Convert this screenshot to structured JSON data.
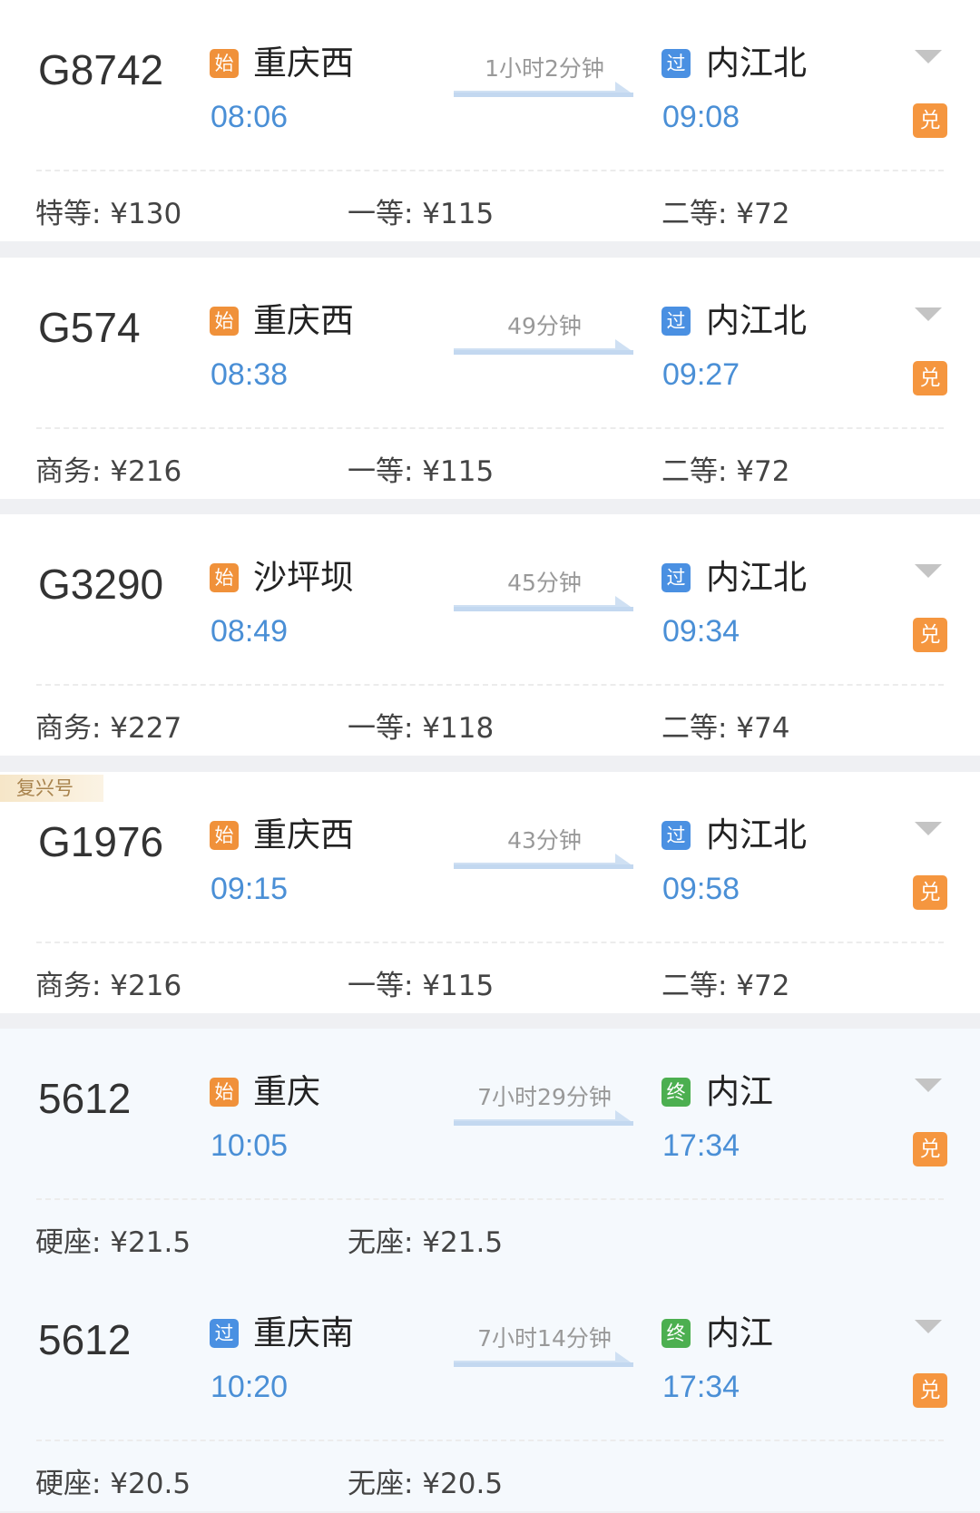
{
  "colors": {
    "start": "#f0913a",
    "pass": "#4a90e2",
    "end": "#4caf50",
    "time": "#4a8fd6",
    "exchange": "#f5963f"
  },
  "trains": [
    {
      "no": "G8742",
      "from_type": "始",
      "from": "重庆西",
      "dep": "08:06",
      "duration": "1小时2分钟",
      "to_type": "过",
      "to": "内江北",
      "arr": "09:08",
      "exchange": "兑",
      "prices": [
        "特等: ¥130",
        "一等: ¥115",
        "二等: ¥72"
      ]
    },
    {
      "no": "G574",
      "from_type": "始",
      "from": "重庆西",
      "dep": "08:38",
      "duration": "49分钟",
      "to_type": "过",
      "to": "内江北",
      "arr": "09:27",
      "exchange": "兑",
      "prices": [
        "商务: ¥216",
        "一等: ¥115",
        "二等: ¥72"
      ]
    },
    {
      "no": "G3290",
      "from_type": "始",
      "from": "沙坪坝",
      "dep": "08:49",
      "duration": "45分钟",
      "to_type": "过",
      "to": "内江北",
      "arr": "09:34",
      "exchange": "兑",
      "prices": [
        "商务: ¥227",
        "一等: ¥118",
        "二等: ¥74"
      ]
    },
    {
      "tag": "复兴号",
      "no": "G1976",
      "from_type": "始",
      "from": "重庆西",
      "dep": "09:15",
      "duration": "43分钟",
      "to_type": "过",
      "to": "内江北",
      "arr": "09:58",
      "exchange": "兑",
      "prices": [
        "商务: ¥216",
        "一等: ¥115",
        "二等: ¥72"
      ]
    },
    {
      "no": "5612",
      "slow": true,
      "from_type": "始",
      "from": "重庆",
      "dep": "10:05",
      "duration": "7小时29分钟",
      "to_type": "终",
      "to": "内江",
      "arr": "17:34",
      "exchange": "兑",
      "prices": [
        "硬座: ¥21.5",
        "无座: ¥21.5"
      ]
    },
    {
      "no": "5612",
      "slow": true,
      "from_type": "过",
      "from": "重庆南",
      "dep": "10:20",
      "duration": "7小时14分钟",
      "to_type": "终",
      "to": "内江",
      "arr": "17:34",
      "exchange": "兑",
      "prices": [
        "硬座: ¥20.5",
        "无座: ¥20.5"
      ]
    }
  ]
}
